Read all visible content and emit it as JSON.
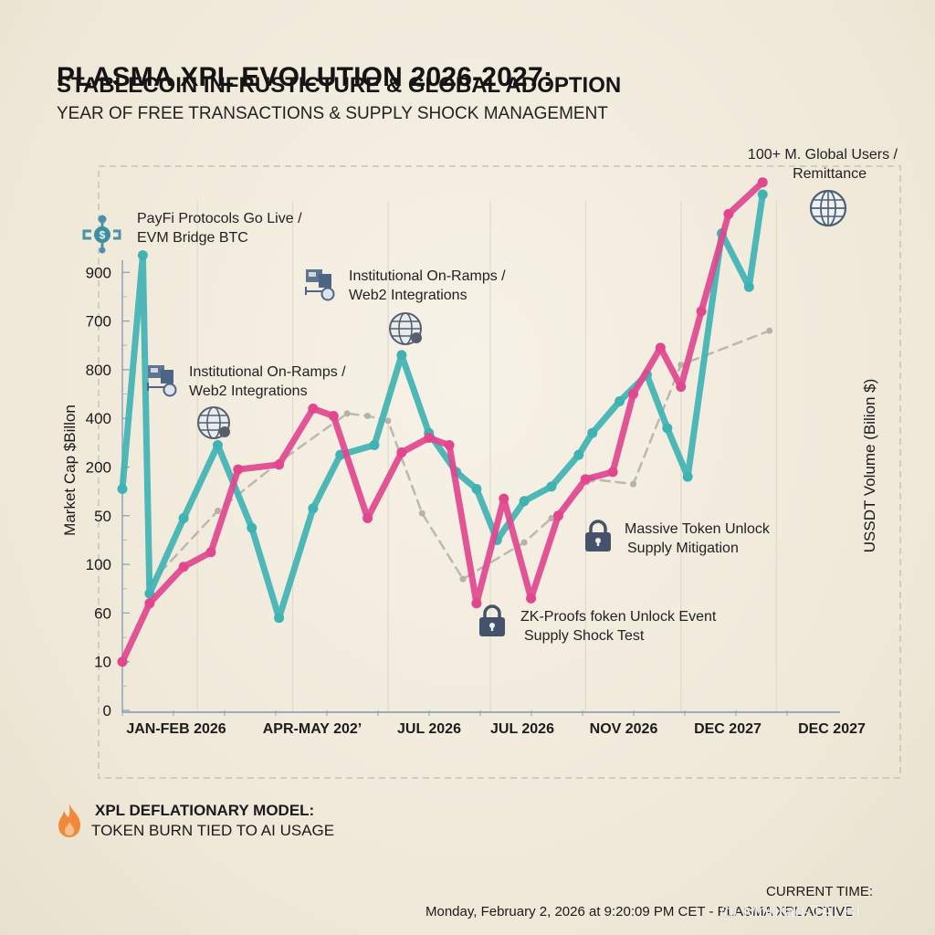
{
  "header": {
    "title": "PLASMA XPL EVOLUTION 2026-2027:",
    "subtitle": "STABLECOIN INFRUSTICTURE & GLOBAL ADOPTION",
    "tagline": "YEAR OF FREE TRANSACTIONS & SUPPLY SHOCK MANAGEMENT"
  },
  "chart_data": {
    "type": "line",
    "title": "PLASMA XPL EVOLUTION 2026-2027",
    "ylabel": "Market Cap $Billon",
    "ylabel_right": "USSDT Volume (Bilion $)",
    "xlabel": "",
    "y_tick_labels": [
      "0",
      "10",
      "60",
      "100",
      "50",
      "200",
      "400",
      "800",
      "700",
      "900"
    ],
    "y_tick_note": "Tick labels are non-monotonic as printed; series values below are expressed in tick-index units (0 = '0' tick, 9 = '900' tick).",
    "x_tick_labels": [
      "JAN-FEB 2026",
      "APR-MAY 202’",
      "JUL 2026",
      "JUL 2026",
      "NOV 2026",
      "DEC 2027",
      "DEC 2027"
    ],
    "grid": true,
    "legend": "none",
    "series": [
      {
        "name": "Market Cap (teal)",
        "color": "#3fb3b3",
        "x": [
          0.0,
          0.03,
          0.04,
          0.09,
          0.14,
          0.19,
          0.23,
          0.28,
          0.32,
          0.37,
          0.41,
          0.45,
          0.49,
          0.52,
          0.55,
          0.59,
          0.63,
          0.67,
          0.69,
          0.73,
          0.77,
          0.8,
          0.83,
          0.88,
          0.92,
          0.94
        ],
        "levels": [
          4.55,
          9.35,
          2.4,
          3.95,
          5.45,
          3.75,
          1.9,
          4.15,
          5.25,
          5.45,
          7.3,
          5.7,
          4.9,
          4.55,
          3.5,
          4.3,
          4.6,
          5.25,
          5.7,
          6.35,
          6.9,
          5.8,
          4.8,
          9.8,
          8.7,
          10.6
        ]
      },
      {
        "name": "USDT Volume (pink)",
        "color": "#e0478f",
        "x": [
          0.0,
          0.04,
          0.09,
          0.13,
          0.17,
          0.23,
          0.28,
          0.31,
          0.36,
          0.41,
          0.45,
          0.48,
          0.52,
          0.56,
          0.6,
          0.64,
          0.68,
          0.72,
          0.75,
          0.79,
          0.82,
          0.85,
          0.89,
          0.94
        ],
        "levels": [
          1.0,
          2.2,
          2.95,
          3.25,
          4.95,
          5.05,
          6.2,
          6.05,
          3.95,
          5.3,
          5.6,
          5.45,
          2.2,
          4.35,
          2.3,
          4.0,
          4.75,
          4.9,
          6.5,
          7.45,
          6.65,
          8.2,
          10.2,
          10.85
        ]
      },
      {
        "name": "Trend (gray dashed)",
        "color": "#b5b2aa",
        "x": [
          0.04,
          0.14,
          0.23,
          0.33,
          0.36,
          0.39,
          0.44,
          0.5,
          0.59,
          0.63,
          0.69,
          0.75,
          0.82,
          0.95
        ],
        "levels": [
          2.6,
          4.1,
          5.1,
          6.1,
          6.05,
          5.95,
          4.05,
          2.7,
          3.45,
          3.95,
          4.75,
          4.65,
          7.1,
          7.8
        ]
      }
    ],
    "annotations": [
      {
        "text_lines": [
          "PayFi Protocols Go Live /",
          "EVM Bridge BTC"
        ],
        "icon": "payfi-network-icon"
      },
      {
        "text_lines": [
          "Institutional On-Ramps /",
          "Web2 Integrations"
        ],
        "icon": "institution-server-icon"
      },
      {
        "text_lines": [
          "Institutional On-Ramps /",
          "Web2 Integrations"
        ],
        "icon": "institution-server-icon"
      },
      {
        "text_lines": [
          "100+ M. Global Users /",
          "Remittance"
        ],
        "icon": "globe-icon"
      },
      {
        "text_lines": [
          "Massive Token Unlock",
          "Supply Mitigation"
        ],
        "icon": "lock-icon"
      },
      {
        "text_lines": [
          "ZK-Proofs foken Unlock Event",
          "Supply Shock Test"
        ],
        "icon": "lock-icon"
      }
    ]
  },
  "annotations": {
    "payfi": {
      "line1": "PayFi Protocols Go Live /",
      "line2": "EVM Bridge BTC"
    },
    "inst_a": {
      "line1": "Institutional On-Ramps /",
      "line2": "Web2 Integrations"
    },
    "inst_b": {
      "line1": "Institutional On-Ramps /",
      "line2": "Web2 Integrations"
    },
    "global": {
      "line1": "100+ M. Global Users /",
      "line2": "Remittance"
    },
    "unlock_massive": {
      "line1": "Massive Token Unlock",
      "line2": "Supply Mitigation"
    },
    "unlock_zk": {
      "line1": "ZK-Proofs foken Unlock Event",
      "line2": "Supply Shock Test"
    }
  },
  "footer": {
    "deflation_title": "XPL DEFLATIONARY MODEL:",
    "deflation_body": "TOKEN BURN TIED TO AI USAGE",
    "current_time_label": "CURRENT TIME:",
    "current_time_value": "Monday, February 2, 2026 at 9:20:09 PM CET - PLASMA XPL ACTIVE",
    "watermark": "@ Mourad-TALBI"
  },
  "colors": {
    "teal": "#3fb3b3",
    "pink": "#e0478f",
    "trend": "#b5b2aa",
    "icon": "#4a5a6e",
    "flame": "#f08a3a"
  }
}
